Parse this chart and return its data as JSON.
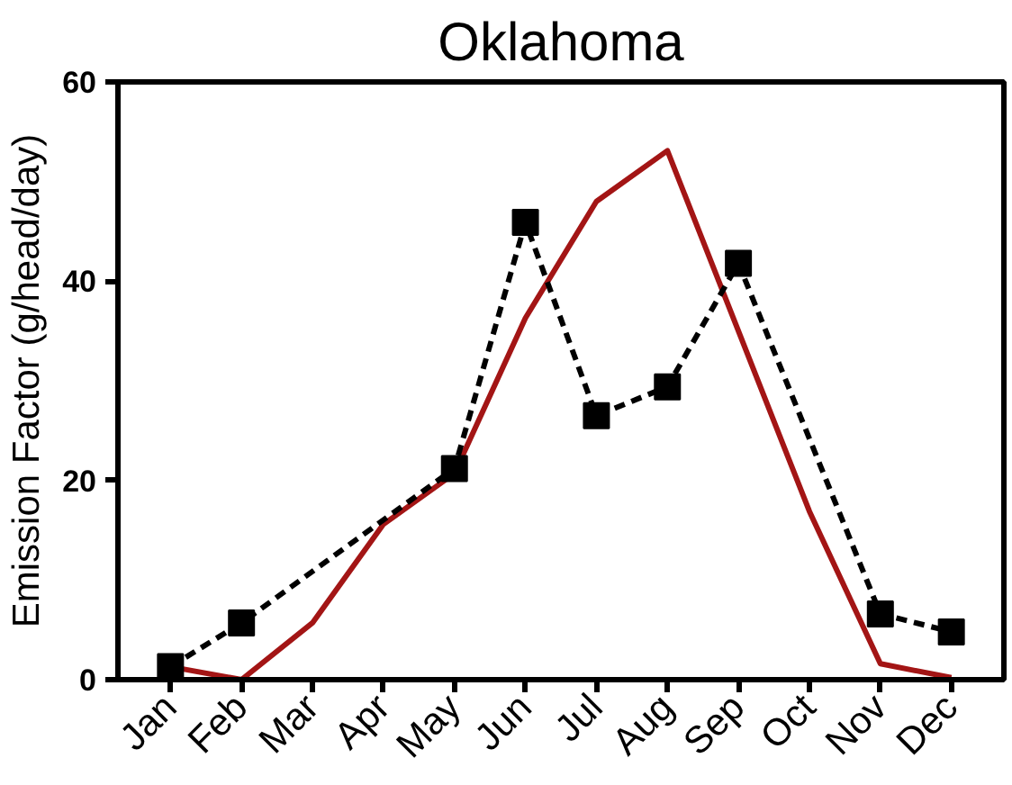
{
  "chart_data": {
    "type": "line",
    "title": "Oklahoma",
    "ylabel": "Emission Factor (g/head/day)",
    "categories": [
      "Jan",
      "Feb",
      "Mar",
      "Apr",
      "May",
      "Jun",
      "Jul",
      "Aug",
      "Sep",
      "Oct",
      "Nov",
      "Dec"
    ],
    "series": [
      {
        "color": "#a31515",
        "line_style": "solid",
        "marker": "none",
        "values": [
          1.3,
          0,
          5.7,
          15.6,
          20.7,
          36.3,
          48.0,
          53.1,
          35.0,
          16.9,
          1.6,
          0.2
        ]
      },
      {
        "color": "#000000",
        "line_style": "dashed",
        "marker": "square",
        "x": [
          "Jan",
          "Feb",
          "May",
          "Jun",
          "Jul",
          "Aug",
          "Sep",
          "Nov",
          "Dec"
        ],
        "values": [
          1.3,
          5.7,
          21.2,
          45.9,
          26.5,
          29.4,
          41.8,
          6.6,
          4.8
        ]
      }
    ],
    "ylim": [
      0,
      60
    ],
    "yticks": [
      0,
      20,
      40,
      60
    ],
    "grid": false
  }
}
